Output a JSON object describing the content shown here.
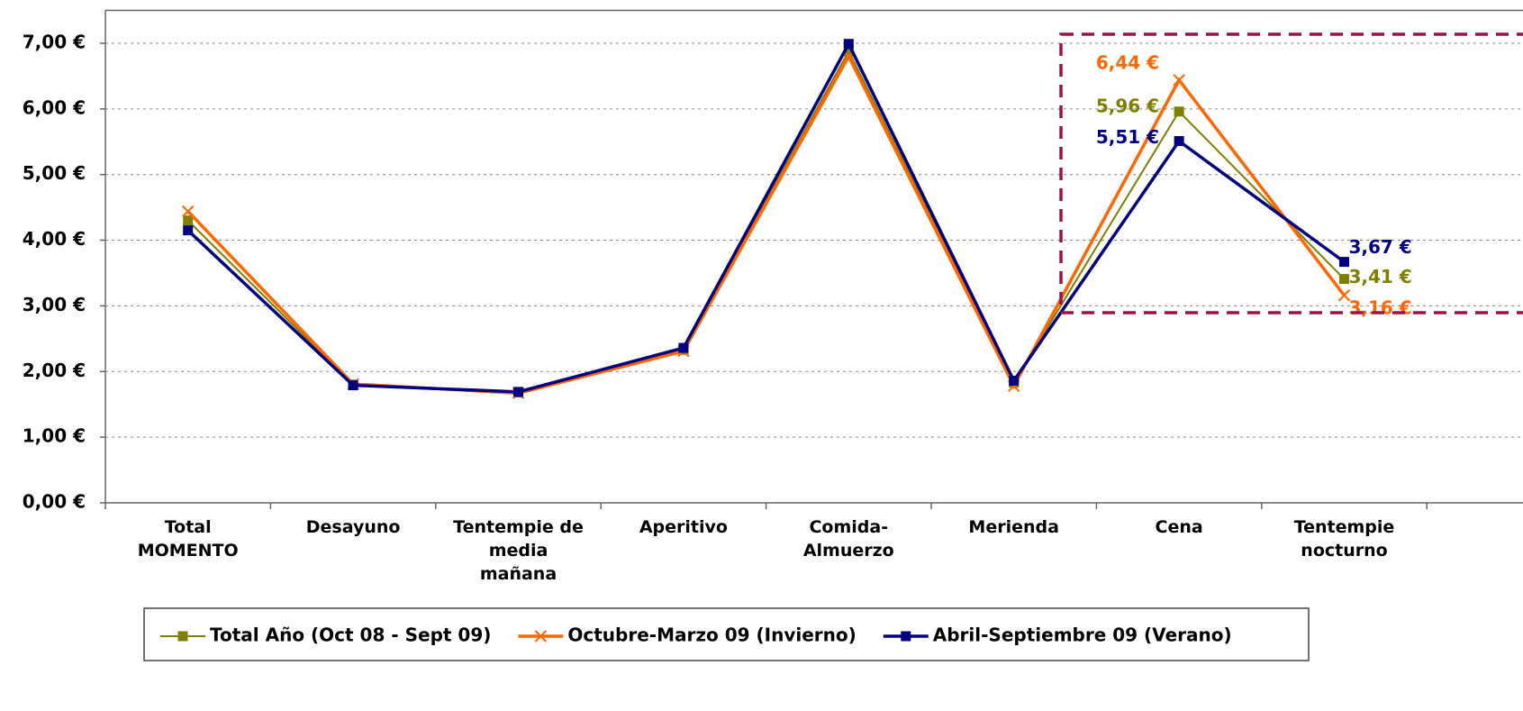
{
  "chart_data": {
    "type": "line",
    "categories": [
      "Total\nMOMENTO",
      "Desayuno",
      "Tentempie de\nmedia\nmañana",
      "Aperitivo",
      "Comida-\nAlmuerzo",
      "Merienda",
      "Cena",
      "Tentempie\nnocturno"
    ],
    "series": [
      {
        "name": "Total Año (Oct 08 - Sept 09)",
        "color": "#808000",
        "marker": "square",
        "values": [
          4.3,
          1.8,
          1.68,
          2.33,
          6.88,
          1.83,
          5.96,
          3.41
        ],
        "value_labels": [
          null,
          null,
          null,
          null,
          null,
          null,
          "5,96 €",
          "3,41 €"
        ]
      },
      {
        "name": "Octubre-Marzo 09 (Invierno)",
        "color": "#ff6600",
        "marker": "x",
        "values": [
          4.44,
          1.81,
          1.67,
          2.31,
          6.8,
          1.78,
          6.44,
          3.16
        ],
        "value_labels": [
          null,
          null,
          null,
          null,
          null,
          null,
          "6,44 €",
          "3,16 €"
        ]
      },
      {
        "name": "Abril-Septiembre 09 (Verano)",
        "color": "#000080",
        "marker": "square",
        "values": [
          4.15,
          1.79,
          1.69,
          2.36,
          6.99,
          1.86,
          5.51,
          3.67
        ],
        "value_labels": [
          null,
          null,
          null,
          null,
          null,
          null,
          "5,51 €",
          "3,67 €"
        ]
      }
    ],
    "ylim": [
      0,
      7.5
    ],
    "yticks": [
      {
        "value": 0,
        "label": "0,00 €"
      },
      {
        "value": 1,
        "label": "1,00 €"
      },
      {
        "value": 2,
        "label": "2,00 €"
      },
      {
        "value": 3,
        "label": "3,00 €"
      },
      {
        "value": 4,
        "label": "4,00 €"
      },
      {
        "value": 5,
        "label": "5,00 €"
      },
      {
        "value": 6,
        "label": "6,00 €"
      },
      {
        "value": 7,
        "label": "7,00 €"
      }
    ],
    "grid": true,
    "legend": "bottom"
  }
}
